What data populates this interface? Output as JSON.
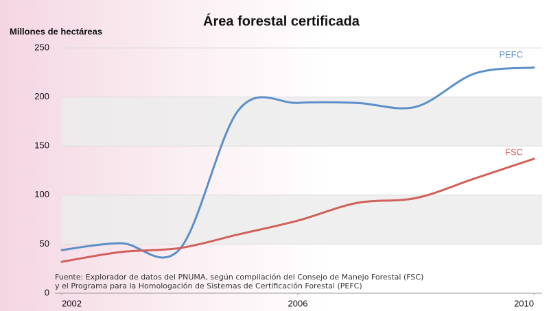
{
  "chart_data": {
    "type": "line",
    "title": "Área forestal certificada",
    "ylabel": "Millones de hectáreas",
    "x": [
      2002,
      2003,
      2004,
      2005,
      2006,
      2007,
      2008,
      2009,
      2010
    ],
    "xlim": [
      2002,
      2010
    ],
    "xticks": [
      2002,
      2006,
      2010
    ],
    "ylim": [
      0,
      250
    ],
    "yticks": [
      0,
      50,
      100,
      150,
      200,
      250
    ],
    "grid": "bands",
    "series": [
      {
        "name": "PEFC",
        "color": "#5b8fc7",
        "values": [
          44,
          51,
          45,
          187,
          194,
          194,
          190,
          224,
          230
        ]
      },
      {
        "name": "FSC",
        "color": "#d0605a",
        "values": [
          32,
          42,
          46,
          60,
          74,
          92,
          97,
          117,
          137
        ]
      }
    ],
    "source": [
      "Fuente: Explorador de datos del PNUMA, según compilación del Consejo de Manejo Forestal (FSC)",
      "y el Programa para la Homologación de Sistemas de Certificación Forestal (PEFC)"
    ]
  }
}
